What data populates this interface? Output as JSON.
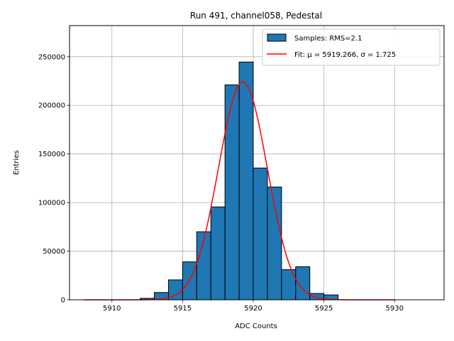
{
  "chart_data": {
    "type": "bar",
    "title": "Run 491, channel058, Pedestal",
    "xlabel": "ADC Counts",
    "ylabel": "Entries",
    "xlim": [
      5907.0,
      5933.5
    ],
    "ylim": [
      0,
      282000
    ],
    "xticks": [
      5910,
      5915,
      5920,
      5925,
      5930
    ],
    "yticks": [
      0,
      50000,
      100000,
      150000,
      200000,
      250000
    ],
    "grid": true,
    "legend_position": "top-right",
    "histogram": {
      "name": "Samples: RMS=2.1",
      "bin_width": 1,
      "color": "#1f77b4",
      "edge_color": "#000000",
      "bins": [
        {
          "x0": 5912,
          "value": 1500
        },
        {
          "x0": 5913,
          "value": 7500
        },
        {
          "x0": 5914,
          "value": 20500
        },
        {
          "x0": 5915,
          "value": 39000
        },
        {
          "x0": 5916,
          "value": 70000
        },
        {
          "x0": 5917,
          "value": 95500
        },
        {
          "x0": 5918,
          "value": 221000
        },
        {
          "x0": 5919,
          "value": 244500
        },
        {
          "x0": 5920,
          "value": 135500
        },
        {
          "x0": 5921,
          "value": 116000
        },
        {
          "x0": 5922,
          "value": 31000
        },
        {
          "x0": 5923,
          "value": 34000
        },
        {
          "x0": 5924,
          "value": 6500
        },
        {
          "x0": 5925,
          "value": 5000
        }
      ]
    },
    "fit": {
      "name": "Fit: μ = 5919.266, σ = 1.725",
      "mu": 5919.266,
      "sigma": 1.725,
      "amplitude": 224000,
      "x_range": [
        5908,
        5930
      ],
      "color": "#ff0000"
    }
  }
}
